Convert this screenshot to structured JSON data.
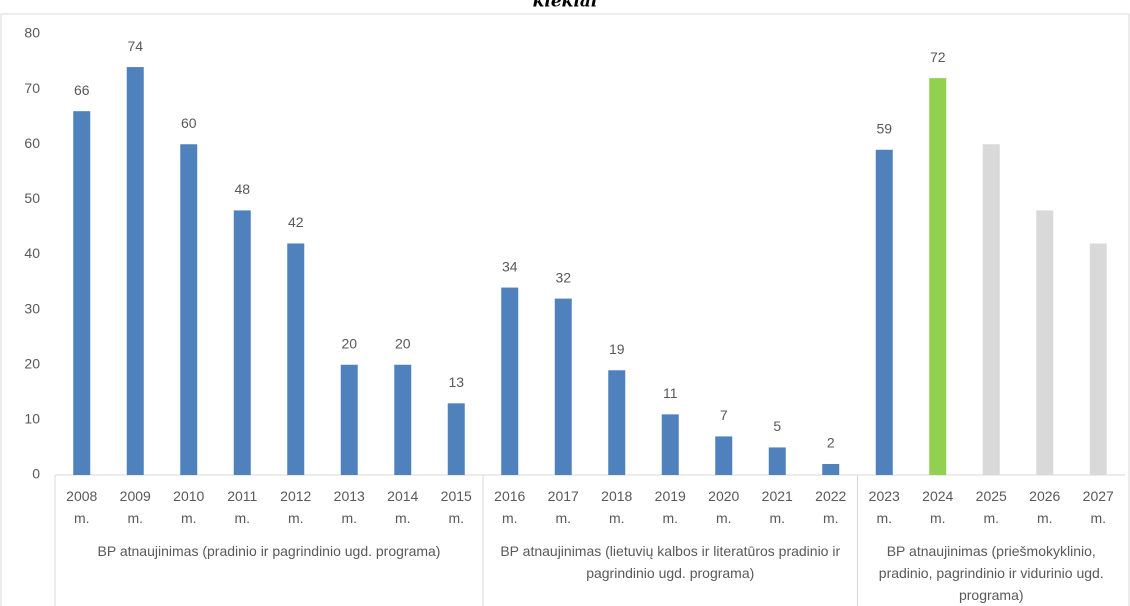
{
  "chart_data": {
    "type": "bar",
    "title": "kiekiai",
    "categories": [
      "2008 m.",
      "2009 m.",
      "2010 m.",
      "2011 m.",
      "2012 m.",
      "2013 m.",
      "2014 m.",
      "2015 m.",
      "2016 m.",
      "2017 m.",
      "2018 m.",
      "2019 m.",
      "2020 m.",
      "2021 m.",
      "2022 m.",
      "2023 m.",
      "2024 m.",
      "2025 m.",
      "2026 m.",
      "2027 m."
    ],
    "values": [
      66,
      74,
      60,
      48,
      42,
      20,
      20,
      13,
      34,
      32,
      19,
      11,
      7,
      5,
      2,
      59,
      72,
      60,
      48,
      42
    ],
    "value_labels": [
      "66",
      "74",
      "60",
      "48",
      "42",
      "20",
      "20",
      "13",
      "34",
      "32",
      "19",
      "11",
      "7",
      "5",
      "2",
      "59",
      "72",
      null,
      null,
      null
    ],
    "colors": [
      "#4f81bd",
      "#4f81bd",
      "#4f81bd",
      "#4f81bd",
      "#4f81bd",
      "#4f81bd",
      "#4f81bd",
      "#4f81bd",
      "#4f81bd",
      "#4f81bd",
      "#4f81bd",
      "#4f81bd",
      "#4f81bd",
      "#4f81bd",
      "#4f81bd",
      "#4f81bd",
      "#92d050",
      "#d9d9d9",
      "#d9d9d9",
      "#d9d9d9"
    ],
    "groups": [
      "BP atnaujinimas (pradinio ir pagrindinio ugd. programa)",
      "BP atnaujinimas (lietuvių kalbos ir literatūros pradinio ir pagrindinio ugd. programa)",
      "BP atnaujinimas (priešmokyklinio, pradinio, pagrindinio ir vidurinio ugd. programa)"
    ],
    "group_sizes": [
      8,
      7,
      5
    ],
    "ylim": [
      0,
      80
    ],
    "yticks": [
      0,
      10,
      20,
      30,
      40,
      50,
      60,
      70,
      80
    ],
    "grid": false
  }
}
